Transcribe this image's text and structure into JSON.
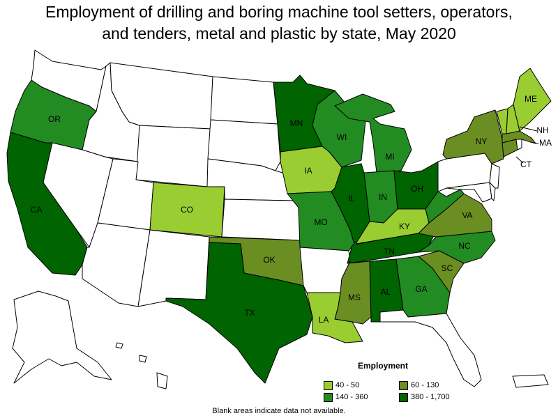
{
  "title_line1": "Employment of drilling and boring machine tool setters, operators,",
  "title_line2": "and tenders, metal and plastic by state, May 2020",
  "legend": {
    "title": "Employment",
    "items": [
      {
        "label": "40 - 50",
        "color": "#9acd32"
      },
      {
        "label": "60 - 130",
        "color": "#6b8e23"
      },
      {
        "label": "140 - 360",
        "color": "#228b22"
      },
      {
        "label": "380 - 1,700",
        "color": "#006400"
      }
    ]
  },
  "note": "Blank areas indicate data not available.",
  "colors": {
    "nodata": "#ffffff",
    "border": "#000000"
  },
  "states": [
    {
      "abbr": "OR",
      "cls": "140 - 360"
    },
    {
      "abbr": "CA",
      "cls": "380 - 1,700"
    },
    {
      "abbr": "CO",
      "cls": "40 - 50"
    },
    {
      "abbr": "TX",
      "cls": "380 - 1,700"
    },
    {
      "abbr": "OK",
      "cls": "60 - 130"
    },
    {
      "abbr": "MN",
      "cls": "380 - 1,700"
    },
    {
      "abbr": "IA",
      "cls": "40 - 50"
    },
    {
      "abbr": "MO",
      "cls": "140 - 360"
    },
    {
      "abbr": "WI",
      "cls": "140 - 360"
    },
    {
      "abbr": "IL",
      "cls": "380 - 1,700"
    },
    {
      "abbr": "MI",
      "cls": "140 - 360"
    },
    {
      "abbr": "IN",
      "cls": "140 - 360"
    },
    {
      "abbr": "OH",
      "cls": "380 - 1,700"
    },
    {
      "abbr": "KY",
      "cls": "40 - 50"
    },
    {
      "abbr": "TN",
      "cls": "380 - 1,700"
    },
    {
      "abbr": "MS",
      "cls": "60 - 130"
    },
    {
      "abbr": "AL",
      "cls": "380 - 1,700"
    },
    {
      "abbr": "GA",
      "cls": "140 - 360"
    },
    {
      "abbr": "LA",
      "cls": "40 - 50"
    },
    {
      "abbr": "SC",
      "cls": "60 - 130"
    },
    {
      "abbr": "NC",
      "cls": "140 - 360"
    },
    {
      "abbr": "VA",
      "cls": "60 - 130"
    },
    {
      "abbr": "NY",
      "cls": "60 - 130"
    },
    {
      "abbr": "ME",
      "cls": "40 - 50"
    },
    {
      "abbr": "NH",
      "cls": "40 - 50"
    },
    {
      "abbr": "MA",
      "cls": "60 - 130"
    },
    {
      "abbr": "CT",
      "cls": "60 - 130"
    },
    {
      "abbr": "VT",
      "cls": "40 - 50"
    },
    {
      "abbr": "WV",
      "cls": "140 - 360"
    },
    {
      "abbr": "WA",
      "cls": "nodata"
    },
    {
      "abbr": "ID",
      "cls": "nodata"
    },
    {
      "abbr": "MT",
      "cls": "nodata"
    },
    {
      "abbr": "NV",
      "cls": "nodata"
    },
    {
      "abbr": "UT",
      "cls": "nodata"
    },
    {
      "abbr": "WY",
      "cls": "nodata"
    },
    {
      "abbr": "AZ",
      "cls": "nodata"
    },
    {
      "abbr": "NM",
      "cls": "nodata"
    },
    {
      "abbr": "ND",
      "cls": "nodata"
    },
    {
      "abbr": "SD",
      "cls": "nodata"
    },
    {
      "abbr": "NE",
      "cls": "nodata"
    },
    {
      "abbr": "KS",
      "cls": "nodata"
    },
    {
      "abbr": "AR",
      "cls": "nodata"
    },
    {
      "abbr": "FL",
      "cls": "nodata"
    },
    {
      "abbr": "PA",
      "cls": "nodata"
    },
    {
      "abbr": "NJ",
      "cls": "nodata"
    },
    {
      "abbr": "MD",
      "cls": "nodata"
    },
    {
      "abbr": "DE",
      "cls": "nodata"
    },
    {
      "abbr": "RI",
      "cls": "nodata"
    },
    {
      "abbr": "AK",
      "cls": "nodata"
    },
    {
      "abbr": "HI",
      "cls": "nodata"
    },
    {
      "abbr": "PR",
      "cls": "nodata"
    }
  ],
  "labeled": [
    "OR",
    "CA",
    "CO",
    "TX",
    "OK",
    "MN",
    "IA",
    "MO",
    "WI",
    "IL",
    "MI",
    "IN",
    "OH",
    "KY",
    "TN",
    "MS",
    "AL",
    "GA",
    "LA",
    "SC",
    "NC",
    "VA",
    "NY",
    "ME",
    "NH",
    "MA",
    "CT"
  ]
}
